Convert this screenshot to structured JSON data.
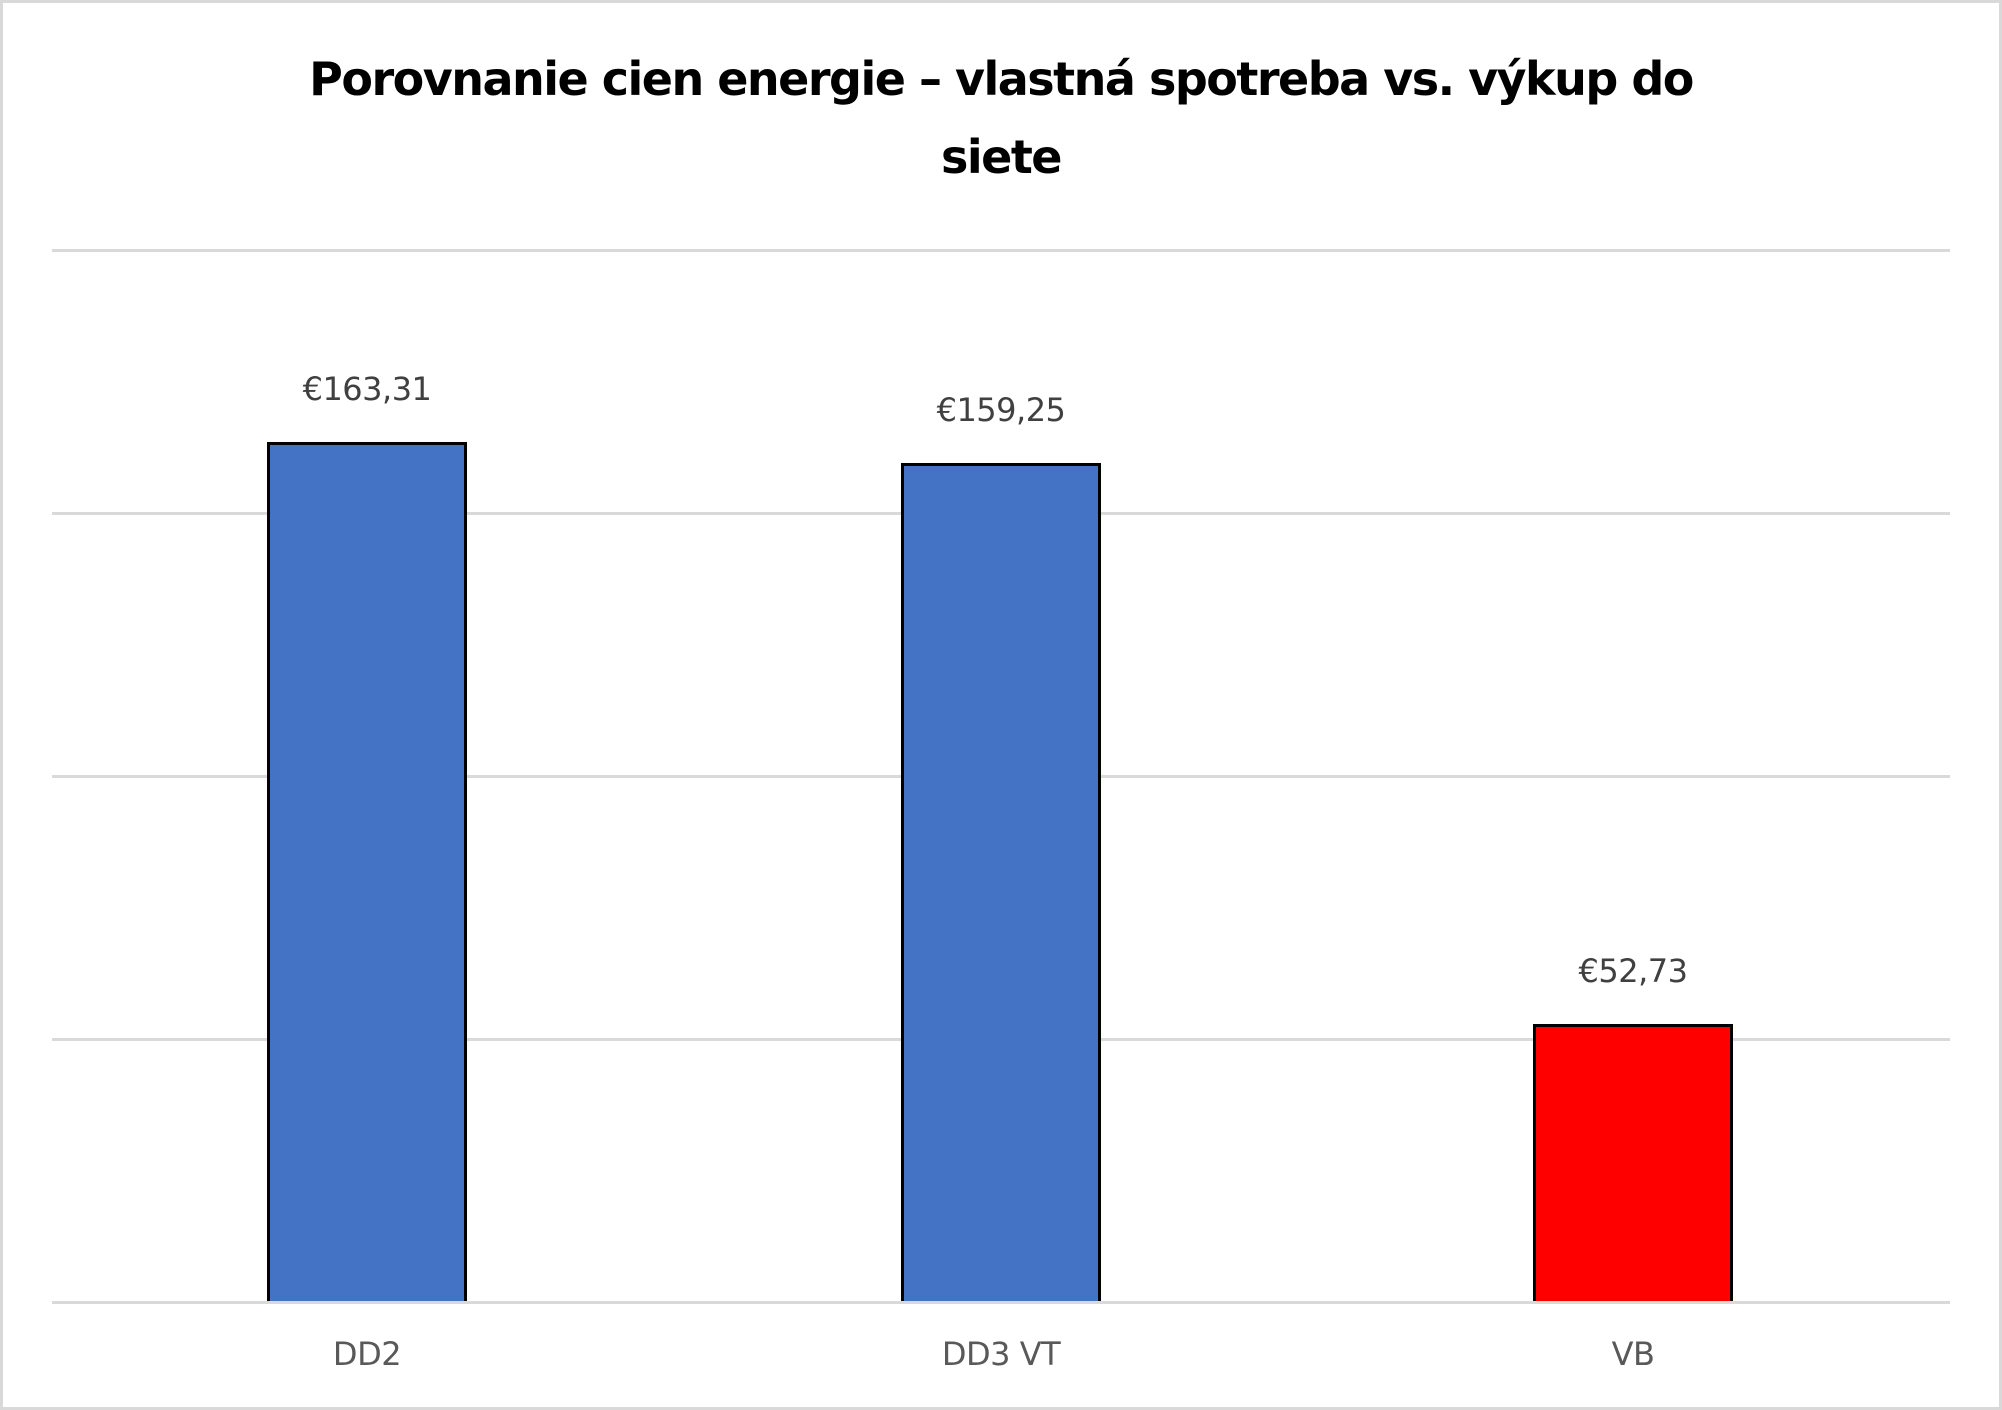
{
  "chart_data": {
    "type": "bar",
    "title": "Porovnanie cien energie – vlastná spotreba vs. výkup do siete",
    "title_lines": [
      "Porovnanie cien energie – vlastná spotreba vs. výkup do",
      "siete"
    ],
    "categories": [
      "DD2",
      "DD3 VT",
      "VB"
    ],
    "values": [
      163.31,
      159.25,
      52.73
    ],
    "data_labels": [
      "€163,31",
      "€159,25",
      "€52,73"
    ],
    "colors": [
      "#4472c4",
      "#4472c4",
      "#ff0000"
    ],
    "xlabel": "",
    "ylabel": "",
    "ylim": [
      0,
      200
    ],
    "gridlines": [
      0,
      50,
      100,
      150,
      200
    ],
    "grid": true,
    "y_tick_labels_visible": false,
    "legend": null
  }
}
